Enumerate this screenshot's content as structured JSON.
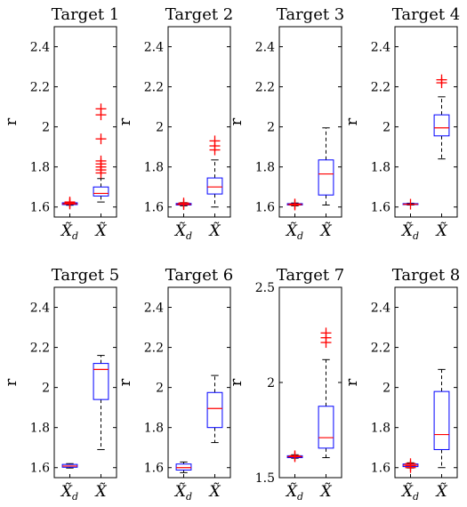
{
  "chart_data": [
    {
      "type": "box",
      "title": "Target 1",
      "ylabel": "r",
      "ylim": [
        1.55,
        2.5
      ],
      "yticks": [
        "1.6",
        "1.8",
        "2",
        "2.2",
        "2.4"
      ],
      "categories": [
        "X̃_d",
        "X̃"
      ],
      "boxes": [
        {
          "q1": 1.612,
          "median": 1.616,
          "q3": 1.621,
          "whisker_low": 1.609,
          "whisker_high": 1.624,
          "outliers": [
            1.62,
            1.615,
            1.625
          ]
        },
        {
          "q1": 1.655,
          "median": 1.668,
          "q3": 1.7,
          "whisker_low": 1.625,
          "whisker_high": 1.742,
          "outliers": [
            1.77,
            1.785,
            1.8,
            1.815,
            1.83,
            1.94,
            2.06,
            2.09
          ]
        }
      ]
    },
    {
      "type": "box",
      "title": "Target 2",
      "ylabel": "r",
      "ylim": [
        1.55,
        2.5
      ],
      "yticks": [
        "1.6",
        "1.8",
        "2",
        "2.2",
        "2.4"
      ],
      "categories": [
        "X̃_d",
        "X̃"
      ],
      "boxes": [
        {
          "q1": 1.61,
          "median": 1.614,
          "q3": 1.618,
          "whisker_low": 1.606,
          "whisker_high": 1.622,
          "outliers": [
            1.612,
            1.62
          ]
        },
        {
          "q1": 1.665,
          "median": 1.7,
          "q3": 1.745,
          "whisker_low": 1.6,
          "whisker_high": 1.835,
          "outliers": [
            1.885,
            1.905,
            1.93
          ]
        }
      ]
    },
    {
      "type": "box",
      "title": "Target 3",
      "ylabel": "r",
      "ylim": [
        1.55,
        2.5
      ],
      "yticks": [
        "1.6",
        "1.8",
        "2",
        "2.2",
        "2.4"
      ],
      "categories": [
        "X̃_d",
        "X̃"
      ],
      "boxes": [
        {
          "q1": 1.61,
          "median": 1.613,
          "q3": 1.617,
          "whisker_low": 1.606,
          "whisker_high": 1.62,
          "outliers": [
            1.615,
            1.61
          ]
        },
        {
          "q1": 1.66,
          "median": 1.765,
          "q3": 1.835,
          "whisker_low": 1.61,
          "whisker_high": 1.995,
          "outliers": []
        }
      ]
    },
    {
      "type": "box",
      "title": "Target 4",
      "ylabel": "r",
      "ylim": [
        1.55,
        2.5
      ],
      "yticks": [
        "1.6",
        "1.8",
        "2",
        "2.2",
        "2.4"
      ],
      "categories": [
        "X̃_d",
        "X̃"
      ],
      "boxes": [
        {
          "q1": 1.612,
          "median": 1.614,
          "q3": 1.617,
          "whisker_low": 1.61,
          "whisker_high": 1.619,
          "outliers": [
            1.614
          ]
        },
        {
          "q1": 1.955,
          "median": 1.995,
          "q3": 2.06,
          "whisker_low": 1.84,
          "whisker_high": 2.15,
          "outliers": [
            2.22,
            2.235
          ]
        }
      ]
    },
    {
      "type": "box",
      "title": "Target 5",
      "ylabel": "r",
      "ylim": [
        1.55,
        2.5
      ],
      "yticks": [
        "1.6",
        "1.8",
        "2",
        "2.2",
        "2.4"
      ],
      "categories": [
        "X̃_d",
        "X̃"
      ],
      "boxes": [
        {
          "q1": 1.602,
          "median": 1.608,
          "q3": 1.616,
          "whisker_low": 1.598,
          "whisker_high": 1.62,
          "outliers": []
        },
        {
          "q1": 1.94,
          "median": 2.09,
          "q3": 2.12,
          "whisker_low": 1.69,
          "whisker_high": 2.16,
          "outliers": []
        }
      ]
    },
    {
      "type": "box",
      "title": "Target 6",
      "ylabel": "r",
      "ylim": [
        1.55,
        2.5
      ],
      "yticks": [
        "1.6",
        "1.8",
        "2",
        "2.2",
        "2.4"
      ],
      "categories": [
        "X̃_d",
        "X̃"
      ],
      "boxes": [
        {
          "q1": 1.588,
          "median": 1.6,
          "q3": 1.618,
          "whisker_low": 1.575,
          "whisker_high": 1.628,
          "outliers": []
        },
        {
          "q1": 1.8,
          "median": 1.895,
          "q3": 1.975,
          "whisker_low": 1.725,
          "whisker_high": 2.06,
          "outliers": []
        }
      ]
    },
    {
      "type": "box",
      "title": "Target 7",
      "ylabel": "r",
      "ylim": [
        1.5,
        2.5
      ],
      "yticks": [
        "1.5",
        "2",
        "2.5"
      ],
      "categories": [
        "X̃_d",
        "X̃"
      ],
      "boxes": [
        {
          "q1": 1.605,
          "median": 1.61,
          "q3": 1.615,
          "whisker_low": 1.602,
          "whisker_high": 1.62,
          "outliers": [
            1.61,
            1.615
          ]
        },
        {
          "q1": 1.655,
          "median": 1.71,
          "q3": 1.875,
          "whisker_low": 1.605,
          "whisker_high": 2.12,
          "outliers": [
            2.21,
            2.235,
            2.26
          ]
        }
      ]
    },
    {
      "type": "box",
      "title": "Target 8",
      "ylabel": "r",
      "ylim": [
        1.55,
        2.5
      ],
      "yticks": [
        "1.6",
        "1.8",
        "2",
        "2.2",
        "2.4"
      ],
      "categories": [
        "X̃_d",
        "X̃"
      ],
      "boxes": [
        {
          "q1": 1.605,
          "median": 1.612,
          "q3": 1.618,
          "whisker_low": 1.598,
          "whisker_high": 1.624,
          "outliers": [
            1.61,
            1.62,
            1.6
          ]
        },
        {
          "q1": 1.69,
          "median": 1.765,
          "q3": 1.98,
          "whisker_low": 1.6,
          "whisker_high": 2.09,
          "outliers": []
        }
      ]
    }
  ]
}
